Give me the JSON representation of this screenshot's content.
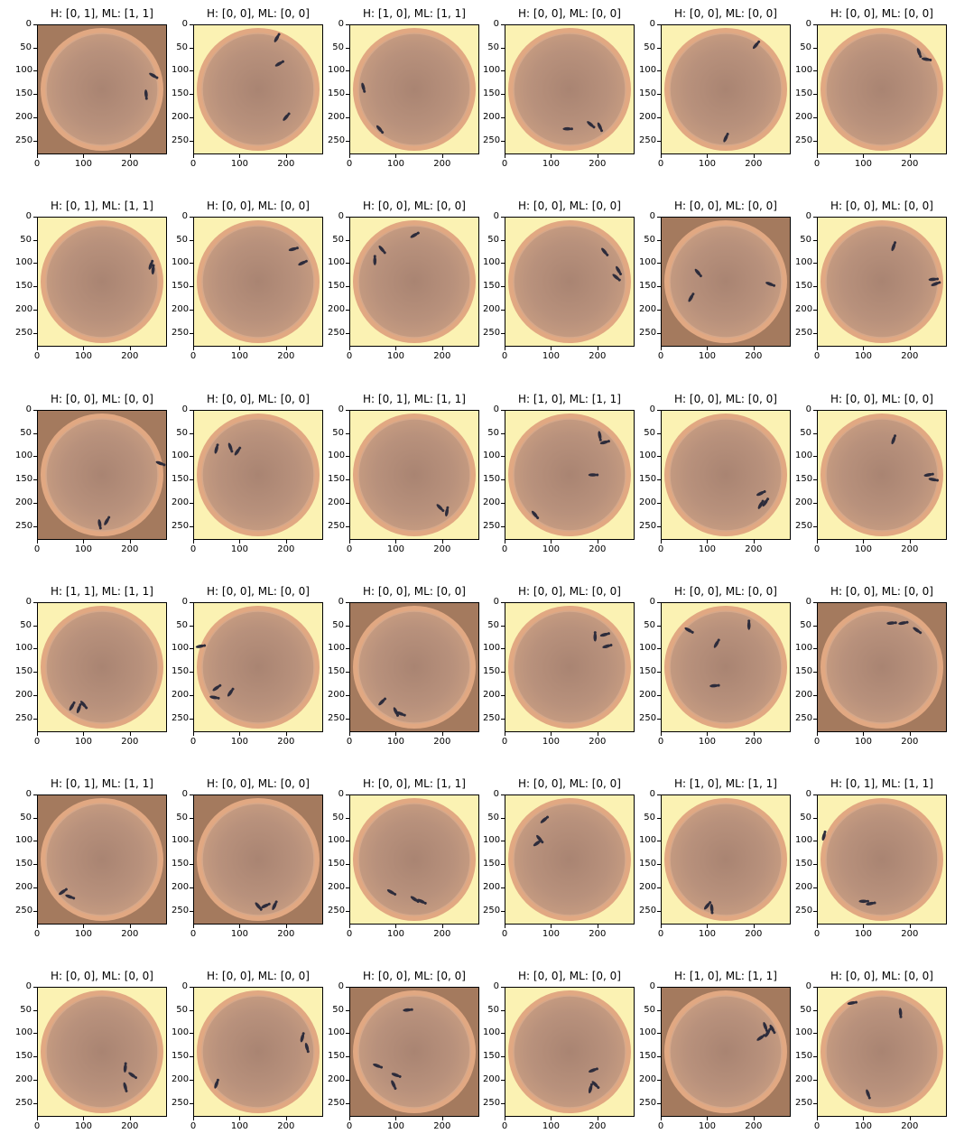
{
  "panels": [
    {
      "title": "H: [0, 1], ML: [1, 1]",
      "bg": "warm-edges",
      "ants": [
        [
          250,
          110
        ],
        [
          235,
          150
        ]
      ]
    },
    {
      "title": "H: [0, 0], ML: [0, 0]",
      "bg": "yellow-corners",
      "ants": [
        [
          180,
          30
        ],
        [
          185,
          85
        ],
        [
          200,
          200
        ]
      ]
    },
    {
      "title": "H: [1, 0], ML: [1, 1]",
      "bg": "yellow-corners",
      "ants": [
        [
          30,
          135
        ],
        [
          65,
          225
        ]
      ]
    },
    {
      "title": "H: [0, 0], ML: [0, 0]",
      "bg": "yellow-corners",
      "ants": [
        [
          135,
          225
        ],
        [
          185,
          215
        ],
        [
          205,
          220
        ]
      ]
    },
    {
      "title": "H: [0, 0], ML: [0, 0]",
      "bg": "yellow-corners",
      "ants": [
        [
          205,
          45
        ],
        [
          140,
          245
        ]
      ]
    },
    {
      "title": "H: [0, 0], ML: [0, 0]",
      "bg": "yellow-corners",
      "ants": [
        [
          220,
          60
        ],
        [
          235,
          75
        ]
      ]
    },
    {
      "title": "H: [0, 1], ML: [1, 1]",
      "bg": "yellow-corners",
      "ants": [
        [
          245,
          105
        ],
        [
          250,
          115
        ]
      ]
    },
    {
      "title": "H: [0, 0], ML: [0, 0]",
      "bg": "yellow-corners",
      "ants": [
        [
          215,
          70
        ],
        [
          235,
          100
        ]
      ]
    },
    {
      "title": "H: [0, 0], ML: [0, 0]",
      "bg": "yellow-corners",
      "ants": [
        [
          70,
          70
        ],
        [
          55,
          95
        ],
        [
          140,
          40
        ]
      ]
    },
    {
      "title": "H: [0, 0], ML: [0, 0]",
      "bg": "yellow-corners",
      "ants": [
        [
          215,
          75
        ],
        [
          245,
          115
        ],
        [
          240,
          130
        ]
      ]
    },
    {
      "title": "H: [0, 0], ML: [0, 0]",
      "bg": "warm-edges",
      "ants": [
        [
          80,
          120
        ],
        [
          65,
          175
        ],
        [
          235,
          145
        ]
      ]
    },
    {
      "title": "H: [0, 0], ML: [0, 0]",
      "bg": "yellow-corners",
      "ants": [
        [
          165,
          65
        ],
        [
          250,
          135
        ],
        [
          255,
          145
        ]
      ]
    },
    {
      "title": "H: [0, 0], ML: [0, 0]",
      "bg": "warm-edges",
      "ants": [
        [
          265,
          115
        ],
        [
          150,
          240
        ],
        [
          135,
          245
        ]
      ]
    },
    {
      "title": "H: [0, 0], ML: [0, 0]",
      "bg": "yellow-corners",
      "ants": [
        [
          50,
          85
        ],
        [
          80,
          80
        ],
        [
          95,
          90
        ]
      ]
    },
    {
      "title": "H: [0, 1], ML: [1, 1]",
      "bg": "yellow-corners",
      "ants": [
        [
          195,
          210
        ],
        [
          210,
          220
        ]
      ]
    },
    {
      "title": "H: [1, 0], ML: [1, 1]",
      "bg": "yellow-corners",
      "ants": [
        [
          215,
          70
        ],
        [
          205,
          55
        ],
        [
          190,
          140
        ],
        [
          65,
          225
        ]
      ]
    },
    {
      "title": "H: [0, 0], ML: [0, 0]",
      "bg": "yellow-corners",
      "ants": [
        [
          215,
          180
        ],
        [
          215,
          205
        ],
        [
          225,
          200
        ]
      ]
    },
    {
      "title": "H: [0, 0], ML: [0, 0]",
      "bg": "yellow-corners",
      "ants": [
        [
          165,
          65
        ],
        [
          240,
          140
        ],
        [
          250,
          150
        ]
      ]
    },
    {
      "title": "H: [1, 1], ML: [1, 1]",
      "bg": "yellow-corners",
      "ants": [
        [
          75,
          225
        ],
        [
          90,
          230
        ],
        [
          100,
          220
        ]
      ]
    },
    {
      "title": "H: [0, 0], ML: [0, 0]",
      "bg": "yellow-corners",
      "ants": [
        [
          15,
          95
        ],
        [
          50,
          185
        ],
        [
          45,
          205
        ],
        [
          80,
          195
        ]
      ]
    },
    {
      "title": "H: [0, 0], ML: [0, 0]",
      "bg": "warm-edges",
      "ants": [
        [
          70,
          215
        ],
        [
          100,
          235
        ],
        [
          110,
          240
        ]
      ]
    },
    {
      "title": "H: [0, 0], ML: [0, 0]",
      "bg": "yellow-corners",
      "ants": [
        [
          195,
          75
        ],
        [
          215,
          70
        ],
        [
          220,
          95
        ]
      ]
    },
    {
      "title": "H: [0, 0], ML: [0, 0]",
      "bg": "yellow-corners",
      "ants": [
        [
          60,
          60
        ],
        [
          120,
          90
        ],
        [
          190,
          50
        ],
        [
          115,
          180
        ]
      ]
    },
    {
      "title": "H: [0, 0], ML: [0, 0]",
      "bg": "warm-edges",
      "ants": [
        [
          160,
          45
        ],
        [
          185,
          45
        ],
        [
          215,
          60
        ]
      ]
    },
    {
      "title": "H: [0, 1], ML: [1, 1]",
      "bg": "warm-edges",
      "ants": [
        [
          55,
          210
        ],
        [
          70,
          220
        ]
      ]
    },
    {
      "title": "H: [0, 0], ML: [0, 0]",
      "bg": "warm-edges",
      "ants": [
        [
          140,
          240
        ],
        [
          155,
          240
        ],
        [
          175,
          240
        ]
      ]
    },
    {
      "title": "H: [0, 0], ML: [1, 1]",
      "bg": "yellow-corners",
      "ants": [
        [
          90,
          210
        ],
        [
          140,
          225
        ],
        [
          155,
          230
        ]
      ]
    },
    {
      "title": "H: [0, 0], ML: [0, 0]",
      "bg": "yellow-corners",
      "ants": [
        [
          85,
          55
        ],
        [
          75,
          95
        ],
        [
          70,
          105
        ]
      ]
    },
    {
      "title": "H: [1, 0], ML: [1, 1]",
      "bg": "yellow-corners",
      "ants": [
        [
          100,
          240
        ],
        [
          110,
          245
        ]
      ]
    },
    {
      "title": "H: [0, 1], ML: [1, 1]",
      "bg": "yellow-corners",
      "ants": [
        [
          100,
          230
        ],
        [
          115,
          235
        ],
        [
          15,
          90
        ]
      ]
    },
    {
      "title": "H: [0, 0], ML: [0, 0]",
      "bg": "yellow-corners",
      "ants": [
        [
          190,
          175
        ],
        [
          205,
          190
        ],
        [
          190,
          215
        ]
      ]
    },
    {
      "title": "H: [0, 0], ML: [0, 0]",
      "bg": "yellow-corners",
      "ants": [
        [
          235,
          110
        ],
        [
          245,
          130
        ],
        [
          50,
          210
        ]
      ]
    },
    {
      "title": "H: [0, 0], ML: [0, 0]",
      "bg": "warm-edges",
      "ants": [
        [
          125,
          50
        ],
        [
          60,
          170
        ],
        [
          100,
          190
        ],
        [
          95,
          210
        ]
      ]
    },
    {
      "title": "H: [0, 0], ML: [0, 0]",
      "bg": "yellow-corners",
      "ants": [
        [
          190,
          180
        ],
        [
          195,
          210
        ],
        [
          185,
          220
        ]
      ]
    },
    {
      "title": "H: [1, 0], ML: [1, 1]",
      "bg": "warm-edges",
      "ants": [
        [
          225,
          85
        ],
        [
          240,
          90
        ],
        [
          230,
          100
        ],
        [
          215,
          110
        ]
      ]
    },
    {
      "title": "H: [0, 0], ML: [0, 0]",
      "bg": "yellow-corners",
      "ants": [
        [
          75,
          35
        ],
        [
          180,
          55
        ],
        [
          110,
          230
        ]
      ]
    }
  ],
  "axis": {
    "y_ticks": [
      "0",
      "50",
      "100",
      "150",
      "200",
      "250"
    ],
    "x_ticks": [
      "0",
      "100",
      "200"
    ],
    "extent": [
      0,
      280
    ]
  },
  "colors": {
    "yellow_bg": "#fbf2b3",
    "warm_bg": "#a47a5e",
    "dish_rim": "#e1a882",
    "dish_floor": "#b8917c",
    "ant": "#2d2c3b"
  }
}
